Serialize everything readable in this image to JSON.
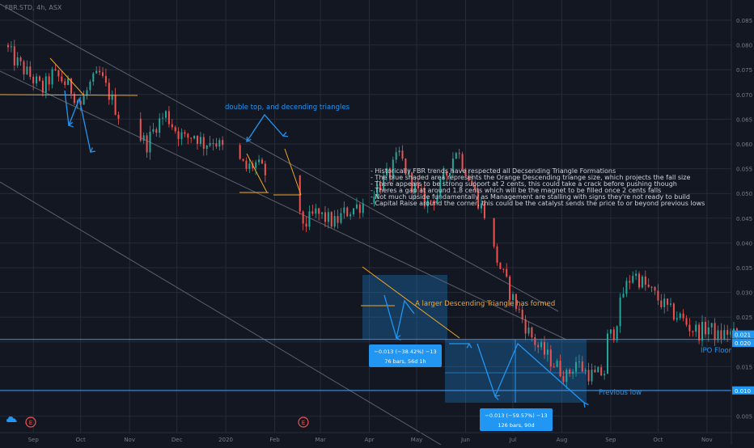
{
  "header": {
    "symbol_label": "FBR.STD, 4h, ASX"
  },
  "colors": {
    "background": "#131722",
    "grid": "#262b38",
    "up": "#26a69a",
    "down": "#ef5350",
    "trend_line": "#5d606b",
    "orange": "#f5a623",
    "blue": "#2196f3",
    "axis_text": "#787b86",
    "label_bg": "#2196f3"
  },
  "events_marker": "E",
  "annotations": {
    "double_top": "double top, and decending triangles",
    "notes": [
      "- Historically FBR trends have respected all Decsending Triangle Formations",
      "- The blue shaded area represents the Orange Descending triange size, which projects the fall size",
      "- There appears to be strong support at 2 cents, this could take a crack before pushing though",
      "- Theres a gap at around 1.8 cents which will be the magnet to be filled once 2 cents falls",
      "- Not much upside fundamentally as Management are stalling with signs they're not ready to build",
      "- Capital Raise around the corner, this could be the catalyst sends the price to or beyond previous lows"
    ],
    "triangle": "A larger Descending Triangle has formed",
    "ipo_floor": "IPO Floor",
    "previous_low": "Previous low",
    "measure1_line1": "−0.013 (−38.42%) −13",
    "measure1_line2": "76 bars, 56d 1h",
    "measure2_line1": "−0.013 (−59.57%) −13",
    "measure2_line2": "126 bars, 90d"
  },
  "chart_data": {
    "type": "candlestick",
    "x_ticks": [
      "Sep",
      "Oct",
      "Nov",
      "Dec",
      "2020",
      "Feb",
      "Mar",
      "Apr",
      "May",
      "Jun",
      "Jul",
      "Aug",
      "Sep",
      "Oct",
      "Nov"
    ],
    "y_ticks": [
      "0.085",
      "0.080",
      "0.075",
      "0.070",
      "0.065",
      "0.060",
      "0.055",
      "0.050",
      "0.045",
      "0.040",
      "0.035",
      "0.030",
      "0.025",
      "0.020",
      "0.015",
      "0.010",
      "0.005"
    ],
    "ylim": [
      0.0035,
      0.0875
    ],
    "price_labels": [
      "0.021",
      "0.020",
      "0.010"
    ],
    "levels": {
      "support": 0.0205,
      "previous_low": 0.0102
    },
    "close_path": [
      [
        0.08,
        0.077,
        0.075,
        0.073,
        0.071,
        0.074,
        0.073,
        0.071,
        0.068,
        0.072,
        0.074,
        0.07,
        0.066
      ],
      [
        0.062,
        0.06,
        0.064,
        0.066,
        0.063,
        0.061,
        0.062,
        0.06,
        0.061,
        0.059
      ],
      [
        0.057,
        0.055,
        0.056,
        0.054
      ],
      [
        0.045,
        0.044,
        0.046,
        0.045,
        0.044,
        0.046,
        0.047,
        0.048
      ],
      [
        0.05,
        0.052,
        0.054,
        0.058,
        0.053,
        0.05,
        0.048,
        0.05,
        0.054,
        0.059,
        0.055,
        0.05,
        0.046
      ],
      [
        0.04,
        0.035,
        0.03,
        0.026,
        0.022,
        0.019,
        0.017,
        0.015,
        0.013,
        0.016,
        0.014,
        0.013,
        0.014
      ],
      [
        0.02,
        0.022,
        0.03,
        0.034,
        0.032,
        0.03,
        0.028,
        0.026,
        0.025,
        0.023,
        0.022,
        0.023,
        0.021,
        0.022,
        0.021
      ]
    ],
    "gaps_after_day": [
      117,
      182,
      272,
      332,
      367,
      398,
      416
    ],
    "gap_days": [
      12,
      9,
      20,
      5,
      4,
      0,
      0
    ]
  }
}
